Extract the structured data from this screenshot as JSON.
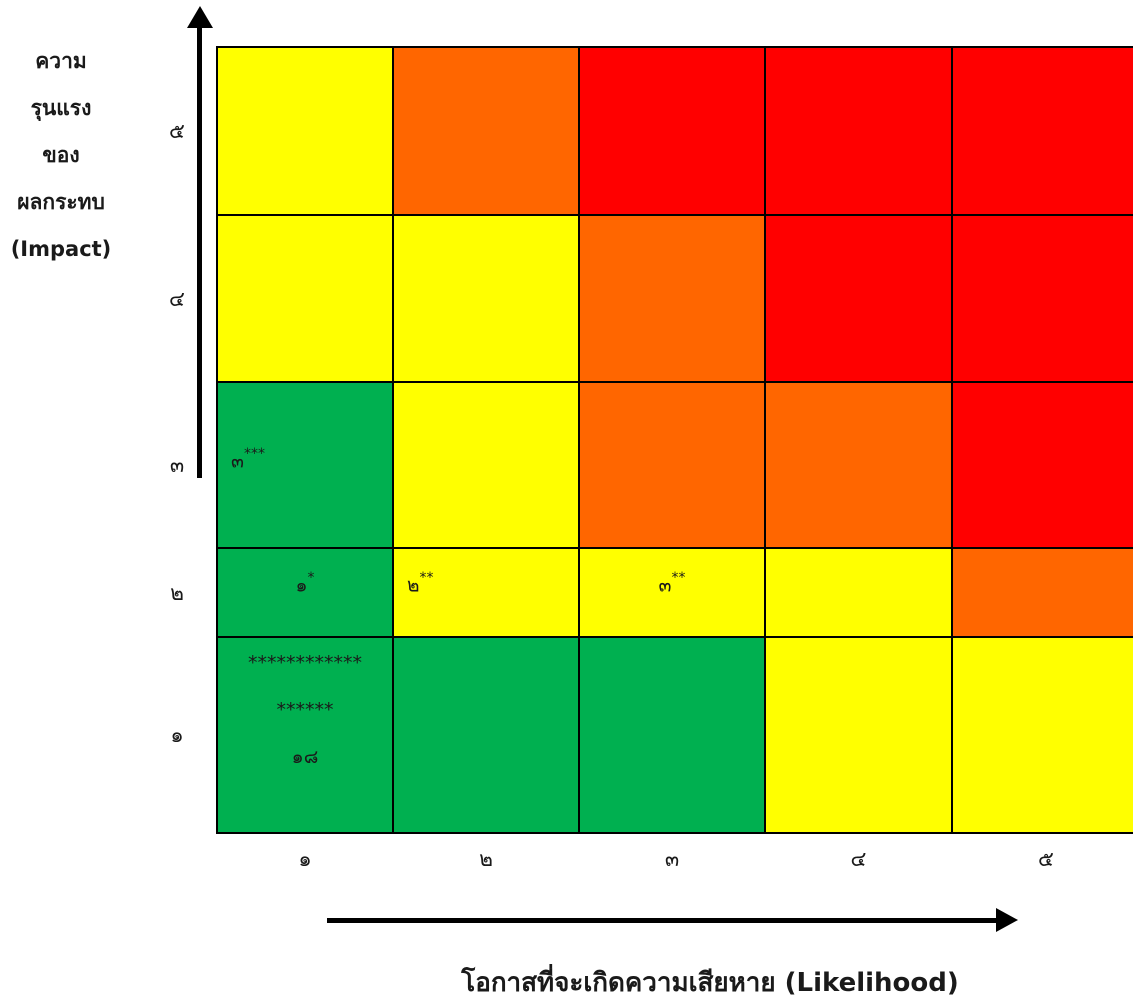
{
  "chart_data": {
    "type": "heatmap",
    "x_categories": [
      "๑",
      "๒",
      "๓",
      "๔",
      "๕"
    ],
    "y_categories": [
      "๑",
      "๒",
      "๓",
      "๔",
      "๕"
    ],
    "xlabel": "โอกาสที่จะเกิดความเสียหาย (Likelihood)",
    "ylabel_lines": [
      "ความ",
      "รุนแรง",
      "ของ",
      "ผลกระทบ",
      "(Impact)"
    ],
    "colors": {
      "green": "#00b050",
      "yellow": "#ffff00",
      "orange": "#ff6600",
      "red": "#ff0000"
    },
    "cell_colors": [
      [
        "green",
        "green",
        "green",
        "yellow",
        "yellow"
      ],
      [
        "green",
        "yellow",
        "yellow",
        "yellow",
        "orange"
      ],
      [
        "green",
        "yellow",
        "orange",
        "orange",
        "red"
      ],
      [
        "yellow",
        "yellow",
        "orange",
        "red",
        "red"
      ],
      [
        "yellow",
        "orange",
        "red",
        "red",
        "red"
      ]
    ],
    "annotations": [
      {
        "x": "๑",
        "y": "๓",
        "main": "๓",
        "sup": "***",
        "align": "left"
      },
      {
        "x": "๑",
        "y": "๒",
        "main": "๑",
        "sup": "*",
        "align": "center"
      },
      {
        "x": "๒",
        "y": "๒",
        "main": "๒",
        "sup": "**",
        "align": "left"
      },
      {
        "x": "๓",
        "y": "๒",
        "main": "๓",
        "sup": "**",
        "align": "center"
      },
      {
        "x": "๑",
        "y": "๑",
        "lines": [
          "************",
          "******",
          "๑๘"
        ],
        "align": "center"
      }
    ]
  }
}
